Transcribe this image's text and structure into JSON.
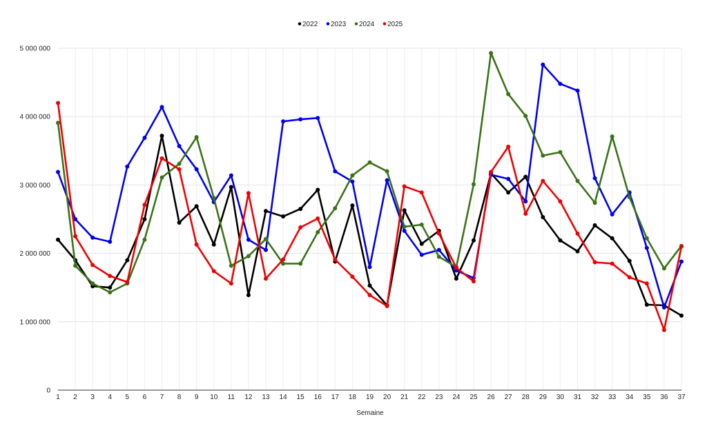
{
  "chart_data": {
    "type": "line",
    "title": "",
    "xlabel": "Semaine",
    "ylabel": "",
    "x": [
      1,
      2,
      3,
      4,
      5,
      6,
      7,
      8,
      9,
      10,
      11,
      12,
      13,
      14,
      15,
      16,
      17,
      18,
      19,
      20,
      21,
      22,
      23,
      24,
      25,
      26,
      27,
      28,
      29,
      30,
      31,
      32,
      33,
      34,
      35,
      36,
      37
    ],
    "ylim": [
      0,
      5000000
    ],
    "y_ticks": [
      0,
      1000000,
      2000000,
      3000000,
      4000000,
      5000000
    ],
    "y_tick_labels": [
      "0",
      "1 000 000",
      "2 000 000",
      "3 000 000",
      "4 000 000",
      "5 000 000"
    ],
    "grid": true,
    "legend_position": "top-center",
    "series": [
      {
        "name": "2022",
        "color": "#000000",
        "values": [
          2200000,
          1900000,
          1520000,
          1500000,
          1900000,
          2500000,
          3720000,
          2450000,
          2690000,
          2130000,
          2970000,
          1390000,
          2620000,
          2540000,
          2650000,
          2930000,
          1880000,
          2700000,
          1530000,
          1240000,
          2630000,
          2140000,
          2330000,
          1630000,
          2190000,
          3170000,
          2890000,
          3120000,
          2530000,
          2190000,
          2030000,
          2410000,
          2220000,
          1890000,
          1250000,
          1240000,
          1090000
        ]
      },
      {
        "name": "2023",
        "color": "#0000ee",
        "values": [
          3190000,
          2500000,
          2230000,
          2170000,
          3270000,
          3690000,
          4140000,
          3570000,
          3230000,
          2750000,
          3140000,
          2200000,
          2050000,
          3930000,
          3960000,
          3980000,
          3200000,
          3050000,
          1800000,
          3070000,
          2330000,
          1980000,
          2050000,
          1750000,
          1640000,
          3150000,
          3090000,
          2760000,
          4760000,
          4480000,
          4380000,
          3100000,
          2570000,
          2890000,
          2080000,
          1210000,
          1880000
        ]
      },
      {
        "name": "2024",
        "color": "#3a7317",
        "values": [
          3910000,
          1820000,
          1560000,
          1430000,
          1560000,
          2200000,
          3110000,
          3310000,
          3700000,
          2810000,
          1820000,
          1960000,
          2210000,
          1850000,
          1850000,
          2310000,
          2660000,
          3140000,
          3330000,
          3200000,
          2390000,
          2420000,
          1950000,
          1800000,
          3010000,
          4930000,
          4330000,
          4010000,
          3430000,
          3480000,
          3060000,
          2740000,
          3710000,
          2820000,
          2220000,
          1780000,
          2110000
        ]
      },
      {
        "name": "2025",
        "color": "#ee0000",
        "values": [
          4200000,
          2250000,
          1830000,
          1670000,
          1580000,
          2710000,
          3390000,
          3230000,
          2130000,
          1740000,
          1560000,
          2880000,
          1630000,
          1910000,
          2380000,
          2510000,
          1910000,
          1660000,
          1390000,
          1230000,
          2980000,
          2890000,
          2290000,
          1790000,
          1590000,
          3190000,
          3560000,
          2580000,
          3060000,
          2760000,
          2290000,
          1870000,
          1850000,
          1650000,
          1560000,
          880000,
          2100000
        ]
      }
    ]
  }
}
